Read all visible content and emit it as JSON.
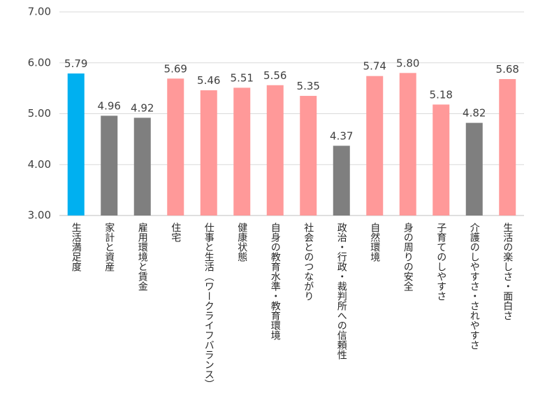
{
  "chart_data": {
    "type": "bar",
    "categories": [
      "生活満足度",
      "家計と資産",
      "雇用環境と賃金",
      "住宅",
      "仕事と生活（ワークライフバランス）",
      "健康状態",
      "自身の教育水準・教育環境",
      "社会とのつながり",
      "政治・行政・裁判所への信頼性",
      "自然環境",
      "身の周りの安全",
      "子育てのしやすさ",
      "介護のしやすさ・されやすさ",
      "生活の楽しさ・面白さ"
    ],
    "values": [
      5.79,
      4.96,
      4.92,
      5.69,
      5.46,
      5.51,
      5.56,
      5.35,
      4.37,
      5.74,
      5.8,
      5.18,
      4.82,
      5.68
    ],
    "value_labels": [
      "5.79",
      "4.96",
      "4.92",
      "5.69",
      "5.46",
      "5.51",
      "5.56",
      "5.35",
      "4.37",
      "5.74",
      "5.80",
      "5.18",
      "4.82",
      "5.68"
    ],
    "colors": [
      "#00b0f0",
      "#7f7f7f",
      "#7f7f7f",
      "#ff9999",
      "#ff9999",
      "#ff9999",
      "#ff9999",
      "#ff9999",
      "#7f7f7f",
      "#ff9999",
      "#ff9999",
      "#ff9999",
      "#7f7f7f",
      "#ff9999"
    ],
    "ylim": [
      3,
      7
    ],
    "yticks": [
      {
        "value": 3,
        "label": "3.00"
      },
      {
        "value": 4,
        "label": "4.00"
      },
      {
        "value": 5,
        "label": "5.00"
      },
      {
        "value": 6,
        "label": "6.00"
      },
      {
        "value": 7,
        "label": "7.00"
      }
    ],
    "grid": true
  }
}
